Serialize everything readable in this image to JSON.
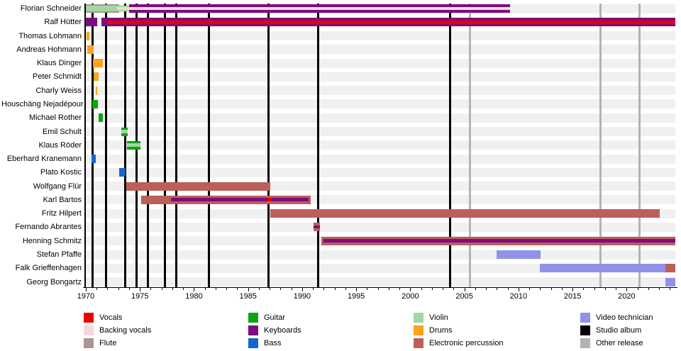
{
  "chart_data": {
    "type": "timeline",
    "description": "Band members timeline with instrument tenures and release markers",
    "x_axis": {
      "min": 1970,
      "max": 2024.5,
      "major_ticks": [
        1970,
        1975,
        1980,
        1985,
        1990,
        1995,
        2000,
        2005,
        2010,
        2015,
        2020
      ],
      "minor_tick_step": 1,
      "grid": false
    },
    "roles_colors": {
      "Vocals": "#ee0000",
      "Backing vocals": "#f4d7db",
      "Flute": "#a89594",
      "Guitar": "#0da50d",
      "Keyboards": "#7d0d7d",
      "Bass": "#1565c8",
      "Violin": "#a3d6a0",
      "Drums": "#fca21d",
      "Electronic percussion": "#b9605a",
      "Video technician": "#9191e9",
      "Studio album": "#000000",
      "Other release": "#b3b3b3"
    },
    "members": [
      {
        "name": "Florian Schneider",
        "bars": [
          {
            "role": "Flute",
            "start": 1970.0,
            "end": 1973.1,
            "h": 12
          },
          {
            "role": "Violin",
            "start": 1970.0,
            "end": 1974.0,
            "h": 8
          },
          {
            "role": "Keyboards",
            "start": 1974.0,
            "end": 2009.2,
            "h": 12
          },
          {
            "role": "Backing vocals",
            "start": 1972.9,
            "end": 2009.2,
            "h": 4
          }
        ]
      },
      {
        "name": "Ralf Hütter",
        "bars": [
          {
            "role": "Keyboards",
            "start": 1970.0,
            "end": 1971.05,
            "h": 12
          },
          {
            "role": "Keyboards",
            "start": 1971.45,
            "end": 2024.5,
            "h": 12
          },
          {
            "role": "Vocals",
            "start": 1972.0,
            "end": 2024.5,
            "h": 5
          }
        ]
      },
      {
        "name": "Thomas Lohmann",
        "bars": [
          {
            "role": "Drums",
            "start": 1970.05,
            "end": 1970.35,
            "h": 12
          }
        ]
      },
      {
        "name": "Andreas Hohmann",
        "bars": [
          {
            "role": "Drums",
            "start": 1970.15,
            "end": 1970.7,
            "h": 12
          }
        ]
      },
      {
        "name": "Klaus Dinger",
        "bars": [
          {
            "role": "Drums",
            "start": 1970.65,
            "end": 1971.6,
            "h": 12
          }
        ]
      },
      {
        "name": "Peter Schmidt",
        "bars": [
          {
            "role": "Drums",
            "start": 1970.75,
            "end": 1971.15,
            "h": 12
          }
        ]
      },
      {
        "name": "Charly Weiss",
        "bars": [
          {
            "role": "Drums",
            "start": 1970.9,
            "end": 1971.05,
            "h": 12
          }
        ]
      },
      {
        "name": "Houschäng Nejadépour",
        "bars": [
          {
            "role": "Guitar",
            "start": 1970.6,
            "end": 1971.1,
            "h": 12
          }
        ]
      },
      {
        "name": "Michael Rother",
        "bars": [
          {
            "role": "Guitar",
            "start": 1971.15,
            "end": 1971.6,
            "h": 12
          }
        ]
      },
      {
        "name": "Emil Schult",
        "bars": [
          {
            "role": "Guitar",
            "start": 1973.3,
            "end": 1973.9,
            "h": 12
          },
          {
            "role": "Violin",
            "start": 1973.3,
            "end": 1973.9,
            "h": 5
          }
        ]
      },
      {
        "name": "Klaus Röder",
        "bars": [
          {
            "role": "Guitar",
            "start": 1973.8,
            "end": 1975.05,
            "h": 12
          },
          {
            "role": "Violin",
            "start": 1973.8,
            "end": 1975.05,
            "h": 5
          }
        ]
      },
      {
        "name": "Eberhard Kranemann",
        "bars": [
          {
            "role": "Bass",
            "start": 1970.5,
            "end": 1970.9,
            "h": 12
          }
        ]
      },
      {
        "name": "Plato Kostic",
        "bars": [
          {
            "role": "Bass",
            "start": 1973.1,
            "end": 1973.65,
            "h": 12
          }
        ]
      },
      {
        "name": "Wolfgang Flür",
        "bars": [
          {
            "role": "Electronic percussion",
            "start": 1973.75,
            "end": 1987.05,
            "h": 12
          }
        ]
      },
      {
        "name": "Karl Bartos",
        "bars": [
          {
            "role": "Electronic percussion",
            "start": 1975.1,
            "end": 1990.8,
            "h": 12
          },
          {
            "role": "Keyboards",
            "start": 1977.9,
            "end": 1990.6,
            "h": 5
          },
          {
            "role": "Vocals",
            "start": 1986.8,
            "end": 1987.2,
            "h": 5
          }
        ]
      },
      {
        "name": "Fritz Hilpert",
        "bars": [
          {
            "role": "Electronic percussion",
            "start": 1987.05,
            "end": 2023.05,
            "h": 12
          }
        ]
      },
      {
        "name": "Fernando Abrantes",
        "bars": [
          {
            "role": "Electronic percussion",
            "start": 1991.05,
            "end": 1991.65,
            "h": 12
          },
          {
            "role": "Keyboards",
            "start": 1991.05,
            "end": 1991.65,
            "h": 4
          }
        ]
      },
      {
        "name": "Henning Schmitz",
        "bars": [
          {
            "role": "Electronic percussion",
            "start": 1991.8,
            "end": 2024.5,
            "h": 12
          },
          {
            "role": "Keyboards",
            "start": 1991.95,
            "end": 2024.5,
            "h": 5
          }
        ]
      },
      {
        "name": "Stefan Pfaffe",
        "bars": [
          {
            "role": "Video technician",
            "start": 2008.0,
            "end": 2012.05,
            "h": 12
          }
        ]
      },
      {
        "name": "Falk Grieffenhagen",
        "bars": [
          {
            "role": "Video technician",
            "start": 2011.95,
            "end": 2023.55,
            "h": 12
          },
          {
            "role": "Electronic percussion",
            "start": 2023.55,
            "end": 2024.5,
            "h": 12
          }
        ]
      },
      {
        "name": "Georg Bongartz",
        "bars": [
          {
            "role": "Video technician",
            "start": 2023.6,
            "end": 2024.5,
            "h": 12
          }
        ]
      }
    ],
    "events": {
      "studio_album_years": [
        1970.6,
        1971.9,
        1973.65,
        1974.7,
        1975.77,
        1977.3,
        1978.35,
        1981.4,
        1986.9,
        1991.5,
        2003.7
      ],
      "other_release_years": [
        2005.5,
        2017.6,
        2021.2
      ]
    }
  },
  "legend": {
    "columns": [
      [
        "Vocals",
        "Backing vocals",
        "Flute"
      ],
      [
        "Guitar",
        "Keyboards",
        "Bass"
      ],
      [
        "Violin",
        "Drums",
        "Electronic percussion"
      ],
      [
        "Video technician",
        "Studio album",
        "Other release"
      ]
    ]
  }
}
